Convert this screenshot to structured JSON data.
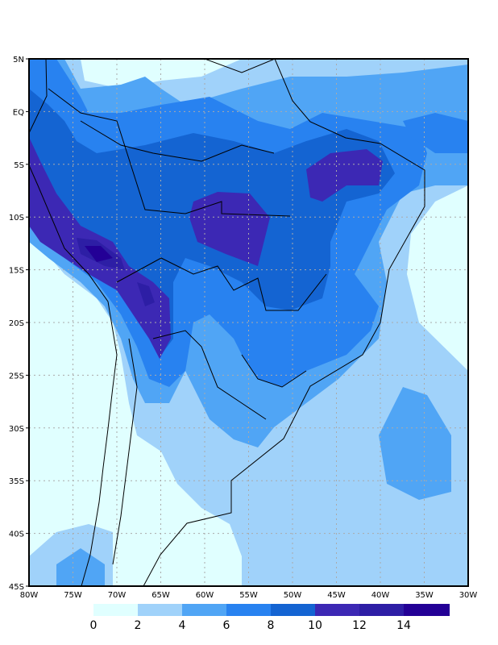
{
  "map": {
    "lon_range": [
      -80,
      -30
    ],
    "lat_range": [
      -45,
      5
    ],
    "lat_labels": [
      "5N",
      "EQ",
      "5S",
      "10S",
      "15S",
      "20S",
      "25S",
      "30S",
      "35S",
      "40S",
      "45S"
    ],
    "lon_labels": [
      "80W",
      "75W",
      "70W",
      "65W",
      "60W",
      "55W",
      "50W",
      "45W",
      "40W",
      "35W",
      "30W"
    ]
  },
  "colorbar": {
    "labels": [
      "0",
      "2",
      "4",
      "6",
      "8",
      "10",
      "12",
      "14"
    ],
    "colors": [
      "#e0ffff",
      "#a0d2fa",
      "#50a5f5",
      "#2882f0",
      "#1464d2",
      "#3c28b4",
      "#2d1ea5",
      "#230096"
    ]
  }
}
